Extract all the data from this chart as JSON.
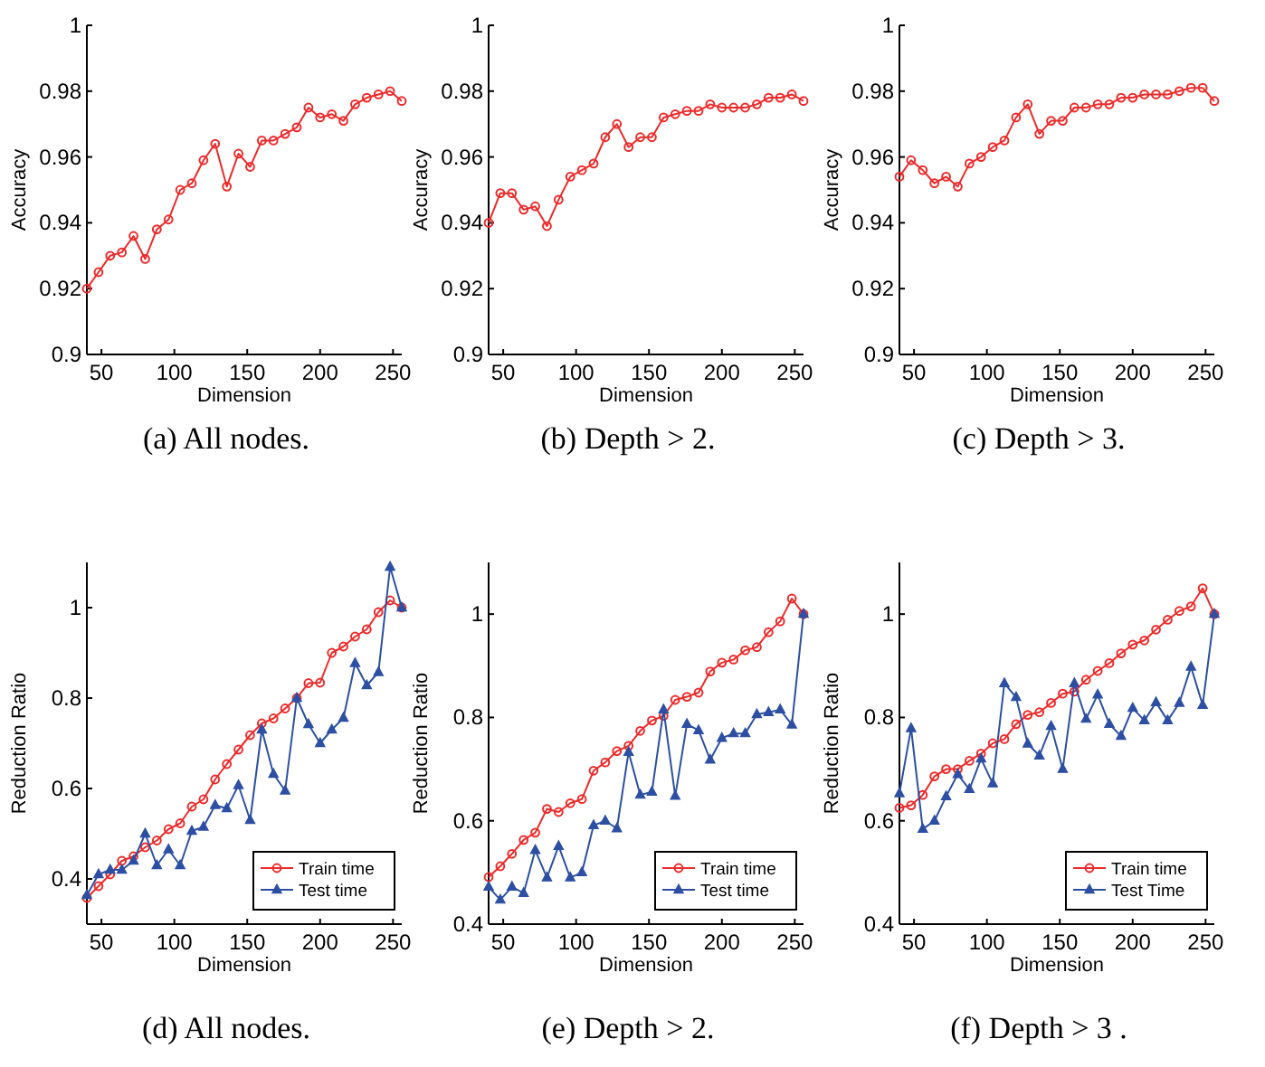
{
  "chart_data": [
    {
      "type": "line",
      "title": "(a) All nodes.",
      "xlabel": "Dimension",
      "ylabel": "Accuracy",
      "x": [
        40,
        48,
        56,
        64,
        72,
        80,
        88,
        96,
        104,
        112,
        120,
        128,
        136,
        144,
        152,
        160,
        168,
        176,
        184,
        192,
        200,
        208,
        216,
        224,
        232,
        240,
        248,
        256
      ],
      "xlim": [
        40,
        256
      ],
      "xticks": [
        50,
        100,
        150,
        200,
        250
      ],
      "ylim": [
        0.9,
        1
      ],
      "yticks": [
        0.9,
        0.92,
        0.94,
        0.96,
        0.98,
        1
      ],
      "marker": "circle",
      "series": [
        {
          "color": "#ee2a2a",
          "values": [
            0.92,
            0.925,
            0.93,
            0.931,
            0.936,
            0.929,
            0.938,
            0.941,
            0.95,
            0.952,
            0.959,
            0.964,
            0.951,
            0.961,
            0.957,
            0.965,
            0.965,
            0.967,
            0.969,
            0.975,
            0.972,
            0.973,
            0.971,
            0.976,
            0.978,
            0.979,
            0.98,
            0.977
          ]
        }
      ]
    },
    {
      "type": "line",
      "title": "(b) Depth > 2.",
      "xlabel": "Dimension",
      "ylabel": "Accuracy",
      "x": [
        40,
        48,
        56,
        64,
        72,
        80,
        88,
        96,
        104,
        112,
        120,
        128,
        136,
        144,
        152,
        160,
        168,
        176,
        184,
        192,
        200,
        208,
        216,
        224,
        232,
        240,
        248,
        256
      ],
      "xlim": [
        40,
        256
      ],
      "xticks": [
        50,
        100,
        150,
        200,
        250
      ],
      "ylim": [
        0.9,
        1
      ],
      "yticks": [
        0.9,
        0.92,
        0.94,
        0.96,
        0.98,
        1
      ],
      "marker": "circle",
      "series": [
        {
          "color": "#ee2a2a",
          "values": [
            0.94,
            0.949,
            0.949,
            0.944,
            0.945,
            0.939,
            0.947,
            0.954,
            0.956,
            0.958,
            0.966,
            0.97,
            0.963,
            0.966,
            0.966,
            0.972,
            0.973,
            0.974,
            0.974,
            0.976,
            0.975,
            0.975,
            0.975,
            0.976,
            0.978,
            0.978,
            0.979,
            0.977
          ]
        }
      ]
    },
    {
      "type": "line",
      "title": "(c) Depth > 3.",
      "xlabel": "Dimension",
      "ylabel": "Accuracy",
      "x": [
        40,
        48,
        56,
        64,
        72,
        80,
        88,
        96,
        104,
        112,
        120,
        128,
        136,
        144,
        152,
        160,
        168,
        176,
        184,
        192,
        200,
        208,
        216,
        224,
        232,
        240,
        248,
        256
      ],
      "xlim": [
        40,
        256
      ],
      "xticks": [
        50,
        100,
        150,
        200,
        250
      ],
      "ylim": [
        0.9,
        1
      ],
      "yticks": [
        0.9,
        0.92,
        0.94,
        0.96,
        0.98,
        1
      ],
      "marker": "circle",
      "series": [
        {
          "color": "#ee2a2a",
          "values": [
            0.954,
            0.959,
            0.956,
            0.952,
            0.954,
            0.951,
            0.958,
            0.96,
            0.963,
            0.965,
            0.972,
            0.976,
            0.967,
            0.971,
            0.971,
            0.975,
            0.975,
            0.976,
            0.976,
            0.978,
            0.978,
            0.979,
            0.979,
            0.979,
            0.98,
            0.981,
            0.981,
            0.977
          ]
        }
      ]
    },
    {
      "type": "line",
      "title": "(d) All nodes.",
      "xlabel": "Dimension",
      "ylabel": "Reduction Ratio",
      "x": [
        40,
        48,
        56,
        64,
        72,
        80,
        88,
        96,
        104,
        112,
        120,
        128,
        136,
        144,
        152,
        160,
        168,
        176,
        184,
        192,
        200,
        208,
        216,
        224,
        232,
        240,
        248,
        256
      ],
      "xlim": [
        40,
        256
      ],
      "xticks": [
        50,
        100,
        150,
        200,
        250
      ],
      "ylim": [
        0.3,
        1.1
      ],
      "yticks": [
        0.4,
        0.6,
        0.8,
        1
      ],
      "legend": "bottom right",
      "series": [
        {
          "name": "Train time",
          "color": "#ee2a2a",
          "marker": "circle",
          "values": [
            0.358,
            0.384,
            0.41,
            0.44,
            0.45,
            0.47,
            0.485,
            0.51,
            0.523,
            0.56,
            0.576,
            0.62,
            0.654,
            0.686,
            0.718,
            0.744,
            0.755,
            0.777,
            0.8,
            0.833,
            0.834,
            0.9,
            0.914,
            0.936,
            0.952,
            0.99,
            1.016,
            1.0
          ]
        },
        {
          "name": "Test time",
          "color": "#2d4fa3",
          "marker": "triangle",
          "values": [
            0.364,
            0.41,
            0.42,
            0.42,
            0.44,
            0.5,
            0.43,
            0.465,
            0.43,
            0.506,
            0.515,
            0.563,
            0.556,
            0.607,
            0.53,
            0.73,
            0.632,
            0.595,
            0.8,
            0.742,
            0.7,
            0.73,
            0.756,
            0.877,
            0.828,
            0.857,
            1.09,
            1.0
          ]
        }
      ]
    },
    {
      "type": "line",
      "title": "(e) Depth > 2.",
      "xlabel": "Dimension",
      "ylabel": "Reduction Ratio",
      "x": [
        40,
        48,
        56,
        64,
        72,
        80,
        88,
        96,
        104,
        112,
        120,
        128,
        136,
        144,
        152,
        160,
        168,
        176,
        184,
        192,
        200,
        208,
        216,
        224,
        232,
        240,
        248,
        256
      ],
      "xlim": [
        40,
        256
      ],
      "xticks": [
        50,
        100,
        150,
        200,
        250
      ],
      "ylim": [
        0.4,
        1.1
      ],
      "yticks": [
        0.4,
        0.6,
        0.8,
        1
      ],
      "legend": "bottom right",
      "series": [
        {
          "name": "Train time",
          "color": "#ee2a2a",
          "marker": "circle",
          "values": [
            0.491,
            0.512,
            0.536,
            0.563,
            0.577,
            0.623,
            0.617,
            0.634,
            0.642,
            0.697,
            0.713,
            0.735,
            0.745,
            0.774,
            0.794,
            0.803,
            0.834,
            0.84,
            0.848,
            0.889,
            0.906,
            0.912,
            0.93,
            0.936,
            0.965,
            0.986,
            1.03,
            1.0
          ]
        },
        {
          "name": "Test time",
          "color": "#2d4fa3",
          "marker": "triangle",
          "values": [
            0.472,
            0.447,
            0.472,
            0.46,
            0.543,
            0.49,
            0.551,
            0.49,
            0.5,
            0.591,
            0.6,
            0.585,
            0.733,
            0.65,
            0.656,
            0.815,
            0.648,
            0.787,
            0.775,
            0.718,
            0.76,
            0.769,
            0.769,
            0.806,
            0.81,
            0.815,
            0.786,
            1.0
          ]
        }
      ]
    },
    {
      "type": "line",
      "title": "(f) Depth > 3 .",
      "xlabel": "Dimension",
      "ylabel": "Reduction Ratio",
      "x": [
        40,
        48,
        56,
        64,
        72,
        80,
        88,
        96,
        104,
        112,
        120,
        128,
        136,
        144,
        152,
        160,
        168,
        176,
        184,
        192,
        200,
        208,
        216,
        224,
        232,
        240,
        248,
        256
      ],
      "xlim": [
        40,
        256
      ],
      "xticks": [
        50,
        100,
        150,
        200,
        250
      ],
      "ylim": [
        0.4,
        1.1
      ],
      "yticks": [
        0.4,
        0.6,
        0.8,
        1
      ],
      "legend": "bottom right",
      "series": [
        {
          "name": "Train time",
          "color": "#ee2a2a",
          "marker": "circle",
          "values": [
            0.625,
            0.63,
            0.65,
            0.686,
            0.7,
            0.7,
            0.716,
            0.73,
            0.75,
            0.758,
            0.787,
            0.805,
            0.81,
            0.828,
            0.846,
            0.85,
            0.873,
            0.89,
            0.905,
            0.924,
            0.941,
            0.949,
            0.97,
            0.989,
            1.006,
            1.015,
            1.05,
            1.0
          ]
        },
        {
          "name": "Test Time",
          "color": "#2d4fa3",
          "marker": "triangle",
          "values": [
            0.653,
            0.779,
            0.584,
            0.6,
            0.647,
            0.69,
            0.661,
            0.72,
            0.672,
            0.866,
            0.839,
            0.749,
            0.726,
            0.783,
            0.7,
            0.866,
            0.797,
            0.844,
            0.787,
            0.764,
            0.818,
            0.794,
            0.829,
            0.794,
            0.828,
            0.898,
            0.824,
            1.0
          ]
        }
      ]
    }
  ]
}
